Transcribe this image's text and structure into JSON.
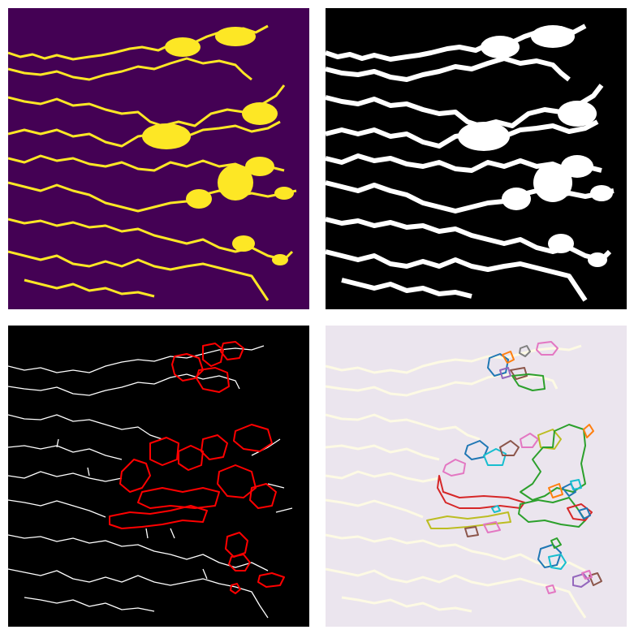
{
  "figure": {
    "panels": [
      {
        "id": "viridis-binary",
        "kind": "binary-map",
        "background": "#440154",
        "foreground": "#fde725"
      },
      {
        "id": "grayscale-binary",
        "kind": "binary-map",
        "background": "#000000",
        "foreground": "#ffffff"
      },
      {
        "id": "skeleton-with-loops",
        "kind": "skeleton-overlay",
        "background": "#000000",
        "skeleton_color": "#ffffff",
        "loop_color": "#ff0000"
      },
      {
        "id": "colored-loops",
        "kind": "loop-segmentation",
        "background": "#ebe5ee",
        "skeleton_color": "#fffde3",
        "loop_palette": [
          "#1f77b4",
          "#ff7f0e",
          "#2ca02c",
          "#d62728",
          "#9467bd",
          "#8c564b",
          "#e377c2",
          "#7f7f7f",
          "#bcbd22",
          "#17becf"
        ]
      }
    ]
  }
}
